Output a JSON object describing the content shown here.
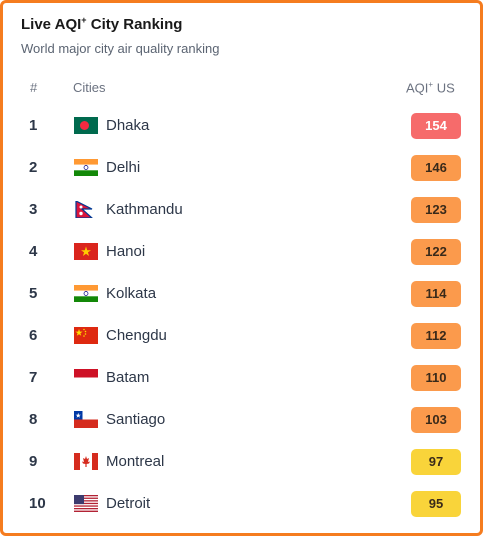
{
  "title": "Live AQI",
  "title_sup": "+",
  "title_rest": " City Ranking",
  "subtitle": "World major city air quality ranking",
  "headers": {
    "rank": "#",
    "cities": "Cities",
    "aqi": "AQI",
    "aqi_sup": "+",
    "aqi_unit": " US"
  },
  "colors": {
    "border": "#f57c1f",
    "unhealthy": "#f66b6b",
    "sensitive": "#fb9a4c",
    "moderate": "#f9d43a"
  },
  "rows": [
    {
      "rank": "1",
      "city": "Dhaka",
      "aqi": "154",
      "flag": "bangladesh-flag-icon"
    },
    {
      "rank": "2",
      "city": "Delhi",
      "aqi": "146",
      "flag": "india-flag-icon"
    },
    {
      "rank": "3",
      "city": "Kathmandu",
      "aqi": "123",
      "flag": "nepal-flag-icon"
    },
    {
      "rank": "4",
      "city": "Hanoi",
      "aqi": "122",
      "flag": "vietnam-flag-icon"
    },
    {
      "rank": "5",
      "city": "Kolkata",
      "aqi": "114",
      "flag": "india-flag-icon"
    },
    {
      "rank": "6",
      "city": "Chengdu",
      "aqi": "112",
      "flag": "china-flag-icon"
    },
    {
      "rank": "7",
      "city": "Batam",
      "aqi": "110",
      "flag": "indonesia-flag-icon"
    },
    {
      "rank": "8",
      "city": "Santiago",
      "aqi": "103",
      "flag": "chile-flag-icon"
    },
    {
      "rank": "9",
      "city": "Montreal",
      "aqi": "97",
      "flag": "canada-flag-icon"
    },
    {
      "rank": "10",
      "city": "Detroit",
      "aqi": "95",
      "flag": "usa-flag-icon"
    }
  ]
}
